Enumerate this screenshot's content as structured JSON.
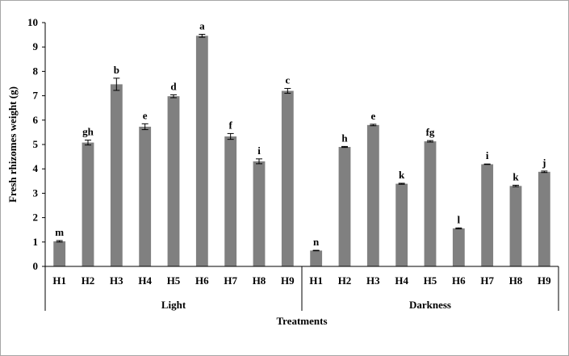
{
  "chart_data": {
    "type": "bar",
    "ylabel": "Fresh rhizomes weight (g)",
    "xlabel": "Treatments",
    "ylim": [
      0,
      10
    ],
    "yticks": [
      0,
      1,
      2,
      3,
      4,
      5,
      6,
      7,
      8,
      9,
      10
    ],
    "grid": false,
    "legend": "none",
    "bar_color": "#808080",
    "groups": [
      {
        "name": "Light",
        "categories": [
          "H1",
          "H2",
          "H3",
          "H4",
          "H5",
          "H6",
          "H7",
          "H8",
          "H9"
        ],
        "values": [
          1.03,
          5.08,
          7.47,
          5.73,
          6.98,
          9.46,
          5.33,
          4.31,
          7.2
        ],
        "errors": [
          0.03,
          0.1,
          0.25,
          0.12,
          0.06,
          0.06,
          0.12,
          0.1,
          0.1
        ],
        "letters": [
          "m",
          "gh",
          "b",
          "e",
          "d",
          "a",
          "f",
          "i",
          "c"
        ]
      },
      {
        "name": "Darkness",
        "categories": [
          "H1",
          "H2",
          "H3",
          "H4",
          "H5",
          "H6",
          "H7",
          "H8",
          "H9"
        ],
        "values": [
          0.65,
          4.9,
          5.8,
          3.39,
          5.13,
          1.56,
          4.19,
          3.3,
          3.88
        ],
        "errors": [
          0.01,
          0.02,
          0.03,
          0.02,
          0.03,
          0.02,
          0.01,
          0.03,
          0.03
        ],
        "letters": [
          "n",
          "h",
          "e",
          "k",
          "fg",
          "l",
          "i",
          "k",
          "j"
        ]
      }
    ]
  }
}
